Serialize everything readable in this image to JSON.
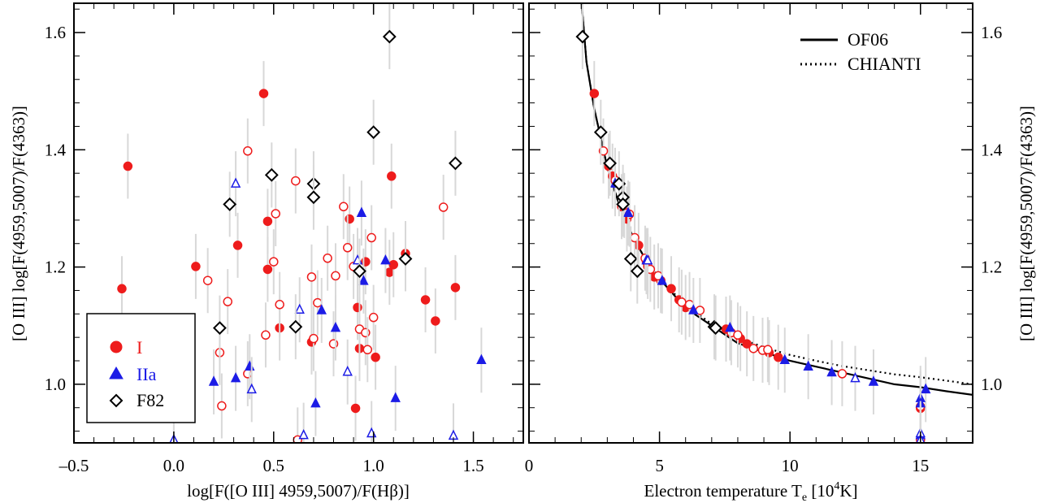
{
  "chart_data": [
    {
      "type": "scatter",
      "xlabel": "log[F([O III] 4959,5007)/F(Hβ)]",
      "ylabel": "[O III] log[F(4959,5007)/F(4363)]",
      "xlim": [
        -0.5,
        1.75
      ],
      "ylim": [
        0.9,
        1.65
      ],
      "xticks": [
        "–0.5",
        "0.0",
        "0.5",
        "1.0",
        "1.5"
      ],
      "yticks": [
        "1.0",
        "1.2",
        "1.4",
        "1.6"
      ],
      "legend": {
        "position": "bottom-left",
        "entries": [
          "I",
          "IIa",
          "F82"
        ]
      },
      "series": [
        {
          "name": "I",
          "marker": "circle",
          "color": "#ee1c1c",
          "filled": true,
          "points": [
            [
              -0.23,
              1.372
            ],
            [
              -0.26,
              1.163
            ],
            [
              0.11,
              1.201
            ],
            [
              0.32,
              1.237
            ],
            [
              0.45,
              1.496
            ],
            [
              0.47,
              1.278
            ],
            [
              0.47,
              1.196
            ],
            [
              0.53,
              1.096
            ],
            [
              0.69,
              1.072
            ],
            [
              0.88,
              1.282
            ],
            [
              0.92,
              1.131
            ],
            [
              0.93,
              1.061
            ],
            [
              0.96,
              1.209
            ],
            [
              0.91,
              0.959
            ],
            [
              1.01,
              1.046
            ],
            [
              1.08,
              1.191
            ],
            [
              1.09,
              1.355
            ],
            [
              1.1,
              1.204
            ],
            [
              1.16,
              1.223
            ],
            [
              1.26,
              1.144
            ],
            [
              1.31,
              1.108
            ],
            [
              1.41,
              1.165
            ]
          ]
        },
        {
          "name": "I",
          "marker": "circle",
          "color": "#ee1c1c",
          "filled": false,
          "points": [
            [
              0.17,
              1.177
            ],
            [
              0.27,
              1.141
            ],
            [
              0.37,
              1.398
            ],
            [
              0.37,
              1.018
            ],
            [
              0.23,
              1.054
            ],
            [
              0.24,
              0.963
            ],
            [
              0.46,
              1.084
            ],
            [
              0.5,
              1.209
            ],
            [
              0.51,
              1.291
            ],
            [
              0.53,
              1.136
            ],
            [
              0.61,
              1.347
            ],
            [
              0.62,
              0.905
            ],
            [
              0.69,
              1.183
            ],
            [
              0.7,
              1.078
            ],
            [
              0.72,
              1.139
            ],
            [
              0.77,
              1.215
            ],
            [
              0.8,
              1.069
            ],
            [
              0.81,
              1.185
            ],
            [
              0.85,
              1.303
            ],
            [
              0.87,
              1.233
            ],
            [
              0.9,
              1.201
            ],
            [
              0.93,
              1.094
            ],
            [
              0.96,
              1.088
            ],
            [
              0.97,
              1.059
            ],
            [
              0.99,
              1.25
            ],
            [
              1.0,
              1.114
            ],
            [
              1.35,
              1.302
            ]
          ]
        },
        {
          "name": "IIa",
          "marker": "triangle",
          "color": "#1c1ce6",
          "filled": true,
          "points": [
            [
              0.2,
              1.004
            ],
            [
              0.31,
              1.01
            ],
            [
              0.38,
              1.03
            ],
            [
              0.74,
              1.126
            ],
            [
              0.71,
              0.967
            ],
            [
              0.81,
              1.096
            ],
            [
              0.94,
              1.292
            ],
            [
              0.95,
              1.176
            ],
            [
              1.06,
              1.211
            ],
            [
              1.11,
              0.976
            ],
            [
              1.54,
              1.041
            ]
          ]
        },
        {
          "name": "IIa",
          "marker": "triangle",
          "color": "#1c1ce6",
          "filled": false,
          "points": [
            [
              0.0,
              0.905
            ],
            [
              0.31,
              1.342
            ],
            [
              0.39,
              0.991
            ],
            [
              0.63,
              1.127
            ],
            [
              0.65,
              0.913
            ],
            [
              0.87,
              1.021
            ],
            [
              0.92,
              1.211
            ],
            [
              0.99,
              0.916
            ],
            [
              1.4,
              0.912
            ]
          ]
        },
        {
          "name": "F82",
          "marker": "diamond",
          "color": "#000000",
          "filled": false,
          "points": [
            [
              0.28,
              1.307
            ],
            [
              0.23,
              1.096
            ],
            [
              0.49,
              1.357
            ],
            [
              0.61,
              1.098
            ],
            [
              0.7,
              1.342
            ],
            [
              0.7,
              1.319
            ],
            [
              0.93,
              1.193
            ],
            [
              1.0,
              1.43
            ],
            [
              1.08,
              1.593
            ],
            [
              1.16,
              1.214
            ],
            [
              1.41,
              1.377
            ]
          ]
        }
      ]
    },
    {
      "type": "line",
      "xlabel": "Electron temperature T",
      "xlabel_sub": "e",
      "xlabel_unit_pre": " [10",
      "xlabel_sup": "4",
      "xlabel_unit_post": "K]",
      "ylabel": "[O III] log[F(4959,5007)/F(4363)]",
      "xlim": [
        0,
        17
      ],
      "ylim": [
        0.9,
        1.65
      ],
      "xticks": [
        "0",
        "5",
        "10",
        "15"
      ],
      "yticks": [
        "1.0",
        "1.2",
        "1.4",
        "1.6"
      ],
      "legend": {
        "position": "top-right",
        "entries": [
          "OF06",
          "CHIANTI"
        ]
      },
      "curves": [
        {
          "name": "OF06",
          "style": "solid",
          "points": [
            [
              2.0,
              1.66
            ],
            [
              2.2,
              1.55
            ],
            [
              2.5,
              1.47
            ],
            [
              3.0,
              1.37
            ],
            [
              3.5,
              1.3
            ],
            [
              4.0,
              1.25
            ],
            [
              4.5,
              1.21
            ],
            [
              5.0,
              1.18
            ],
            [
              6.0,
              1.13
            ],
            [
              7.0,
              1.1
            ],
            [
              8.0,
              1.07
            ],
            [
              9.0,
              1.055
            ],
            [
              10.0,
              1.04
            ],
            [
              11.0,
              1.03
            ],
            [
              12.0,
              1.02
            ],
            [
              13.0,
              1.01
            ],
            [
              14.0,
              1.0
            ],
            [
              15.0,
              0.995
            ],
            [
              16.0,
              0.988
            ],
            [
              17.0,
              0.982
            ]
          ]
        },
        {
          "name": "CHIANTI",
          "style": "dotted",
          "points": [
            [
              2.0,
              1.66
            ],
            [
              2.2,
              1.55
            ],
            [
              2.5,
              1.47
            ],
            [
              3.0,
              1.37
            ],
            [
              3.5,
              1.3
            ],
            [
              4.0,
              1.25
            ],
            [
              4.5,
              1.21
            ],
            [
              5.0,
              1.18
            ],
            [
              6.0,
              1.135
            ],
            [
              7.0,
              1.103
            ],
            [
              8.0,
              1.08
            ],
            [
              9.0,
              1.063
            ],
            [
              10.0,
              1.05
            ],
            [
              11.0,
              1.04
            ],
            [
              12.0,
              1.031
            ],
            [
              13.0,
              1.024
            ],
            [
              14.0,
              1.017
            ],
            [
              15.0,
              1.012
            ],
            [
              16.0,
              1.006
            ],
            [
              17.0,
              1.0
            ]
          ]
        }
      ],
      "series": [
        {
          "name": "I",
          "marker": "circle",
          "color": "#ee1c1c",
          "filled": true,
          "points": [
            [
              2.5,
              1.496
            ],
            [
              3.05,
              1.372
            ],
            [
              3.2,
              1.355
            ],
            [
              3.55,
              1.303
            ],
            [
              3.75,
              1.282
            ],
            [
              4.2,
              1.237
            ],
            [
              4.5,
              1.209
            ],
            [
              4.55,
              1.201
            ],
            [
              4.8,
              1.183
            ],
            [
              5.05,
              1.177
            ],
            [
              5.45,
              1.163
            ],
            [
              5.75,
              1.144
            ],
            [
              6.0,
              1.131
            ],
            [
              7.55,
              1.094
            ],
            [
              8.1,
              1.078
            ],
            [
              8.35,
              1.069
            ],
            [
              9.2,
              1.054
            ],
            [
              9.55,
              1.046
            ],
            [
              15.0,
              0.959
            ]
          ]
        },
        {
          "name": "I",
          "marker": "circle",
          "color": "#ee1c1c",
          "filled": false,
          "points": [
            [
              2.85,
              1.398
            ],
            [
              3.3,
              1.348
            ],
            [
              3.65,
              1.305
            ],
            [
              3.85,
              1.29
            ],
            [
              4.05,
              1.25
            ],
            [
              4.45,
              1.215
            ],
            [
              4.65,
              1.196
            ],
            [
              4.95,
              1.185
            ],
            [
              5.85,
              1.14
            ],
            [
              6.15,
              1.136
            ],
            [
              6.55,
              1.126
            ],
            [
              7.75,
              1.088
            ],
            [
              8.0,
              1.084
            ],
            [
              8.6,
              1.061
            ],
            [
              8.95,
              1.058
            ],
            [
              9.15,
              1.059
            ],
            [
              12.0,
              1.018
            ],
            [
              15.0,
              0.962
            ],
            [
              15.0,
              0.905
            ]
          ]
        },
        {
          "name": "IIa",
          "marker": "triangle",
          "color": "#1c1ce6",
          "filled": true,
          "points": [
            [
              3.3,
              1.342
            ],
            [
              3.8,
              1.292
            ],
            [
              4.5,
              1.211
            ],
            [
              5.1,
              1.176
            ],
            [
              6.3,
              1.126
            ],
            [
              7.7,
              1.096
            ],
            [
              9.8,
              1.041
            ],
            [
              10.7,
              1.03
            ],
            [
              11.6,
              1.02
            ],
            [
              13.2,
              1.004
            ],
            [
              15.2,
              0.991
            ],
            [
              15.0,
              0.976
            ],
            [
              15.0,
              0.967
            ],
            [
              15.0,
              0.913
            ]
          ]
        },
        {
          "name": "IIa",
          "marker": "triangle",
          "color": "#1c1ce6",
          "filled": false,
          "points": [
            [
              4.55,
              1.211
            ],
            [
              12.5,
              1.01
            ],
            [
              15.0,
              0.916
            ],
            [
              15.0,
              0.905
            ]
          ]
        },
        {
          "name": "F82",
          "marker": "diamond",
          "color": "#000000",
          "filled": false,
          "points": [
            [
              2.05,
              1.593
            ],
            [
              2.75,
              1.43
            ],
            [
              3.1,
              1.377
            ],
            [
              3.45,
              1.342
            ],
            [
              3.6,
              1.319
            ],
            [
              3.6,
              1.307
            ],
            [
              3.9,
              1.214
            ],
            [
              4.15,
              1.193
            ],
            [
              7.1,
              1.098
            ],
            [
              7.15,
              1.096
            ]
          ]
        }
      ]
    }
  ]
}
